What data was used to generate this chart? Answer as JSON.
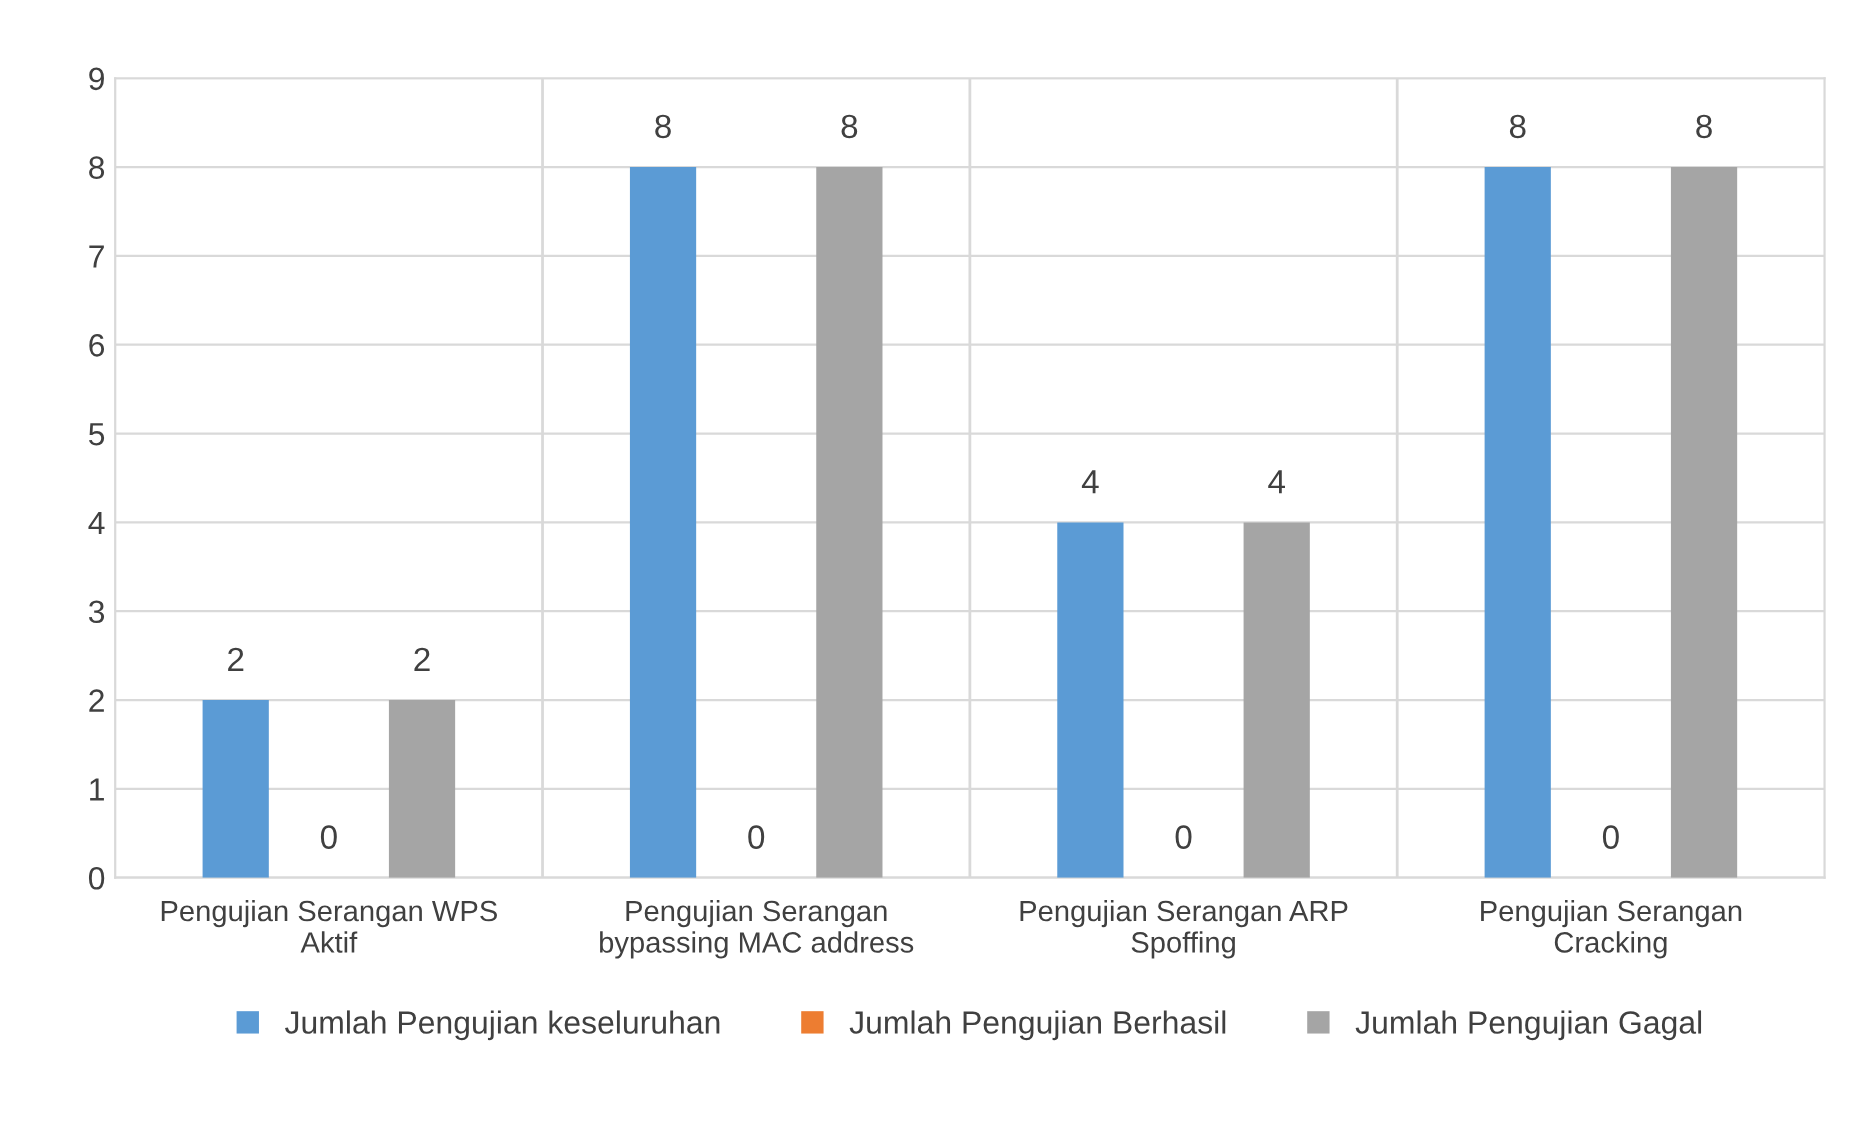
{
  "chart_data": {
    "type": "bar",
    "categories": [
      "Pengujian Serangan WPS Aktif",
      "Pengujian Serangan bypassing MAC address",
      "Pengujian Serangan ARP Spoffing",
      "Pengujian Serangan Cracking"
    ],
    "series": [
      {
        "name": "Jumlah Pengujian keseluruhan",
        "color": "#5b9bd5",
        "values": [
          2,
          8,
          4,
          8
        ]
      },
      {
        "name": "Jumlah Pengujian Berhasil",
        "color": "#ed7d31",
        "values": [
          0,
          0,
          0,
          0
        ]
      },
      {
        "name": "Jumlah Pengujian Gagal",
        "color": "#a5a5a5",
        "values": [
          2,
          8,
          4,
          8
        ]
      }
    ],
    "ylim": [
      0,
      9
    ],
    "yticks": [
      0,
      1,
      2,
      3,
      4,
      5,
      6,
      7,
      8,
      9
    ],
    "grid": true,
    "legend": "bottom",
    "data_labels": true
  }
}
